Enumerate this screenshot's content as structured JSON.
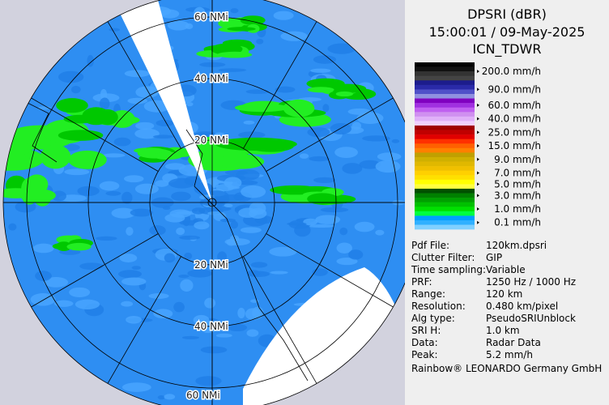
{
  "header": {
    "title": "DPSRI (dBR)",
    "time": "15:00:01 / 09-May-2025",
    "site": "ICN_TDWR"
  },
  "ring_labels": [
    "20 NMi",
    "40 NMi",
    "60 NMi"
  ],
  "legend": [
    {
      "label": "200.0 mm/h",
      "colors": [
        "#000000",
        "#111111",
        "#333333",
        "#444444"
      ]
    },
    {
      "label": "90.0 mm/h",
      "colors": [
        "#1c1c8c",
        "#2a2aa8",
        "#5050c8",
        "#9090e0"
      ]
    },
    {
      "label": "60.0 mm/h",
      "colors": [
        "#8000c0",
        "#a030e0",
        "#c060f0"
      ]
    },
    {
      "label": "40.0 mm/h",
      "colors": [
        "#d090f0",
        "#e0b0f8",
        "#f0d0ff"
      ]
    },
    {
      "label": "25.0 mm/h",
      "colors": [
        "#a00000",
        "#c00000",
        "#e00000"
      ]
    },
    {
      "label": "15.0 mm/h",
      "colors": [
        "#ff3000",
        "#ff6000",
        "#ff8000"
      ]
    },
    {
      "label": "9.0 mm/h",
      "colors": [
        "#c0a000",
        "#d0b000",
        "#e0b800"
      ]
    },
    {
      "label": "7.0 mm/h",
      "colors": [
        "#f0c000",
        "#ffd000",
        "#ffe000"
      ]
    },
    {
      "label": "5.0 mm/h",
      "colors": [
        "#ffff00",
        "#ffff40"
      ]
    },
    {
      "label": "3.0 mm/h",
      "colors": [
        "#005000",
        "#008000",
        "#00a000"
      ]
    },
    {
      "label": "1.0 mm/h",
      "colors": [
        "#00c000",
        "#00e000",
        "#00ff40"
      ]
    },
    {
      "label": "0.1 mm/h",
      "colors": [
        "#00a0ff",
        "#30b0ff",
        "#80d0ff"
      ]
    }
  ],
  "info": [
    [
      "Pdf File:",
      "120km.dpsri"
    ],
    [
      "Clutter Filter:",
      "GIP"
    ],
    [
      "Time sampling:",
      "Variable"
    ],
    [
      "PRF:",
      "1250 Hz / 1000 Hz"
    ],
    [
      "Range:",
      "120 km"
    ],
    [
      "Resolution:",
      "0.480 km/pixel"
    ],
    [
      "Alg type:",
      "PseudoSRIUnblock"
    ],
    [
      "SRI H:",
      "1.0 km"
    ],
    [
      "Data:",
      "Radar Data"
    ],
    [
      "Peak:",
      "5.2 mm/h"
    ]
  ],
  "footer": "Rainbow® LEONARDO Germany GmbH"
}
